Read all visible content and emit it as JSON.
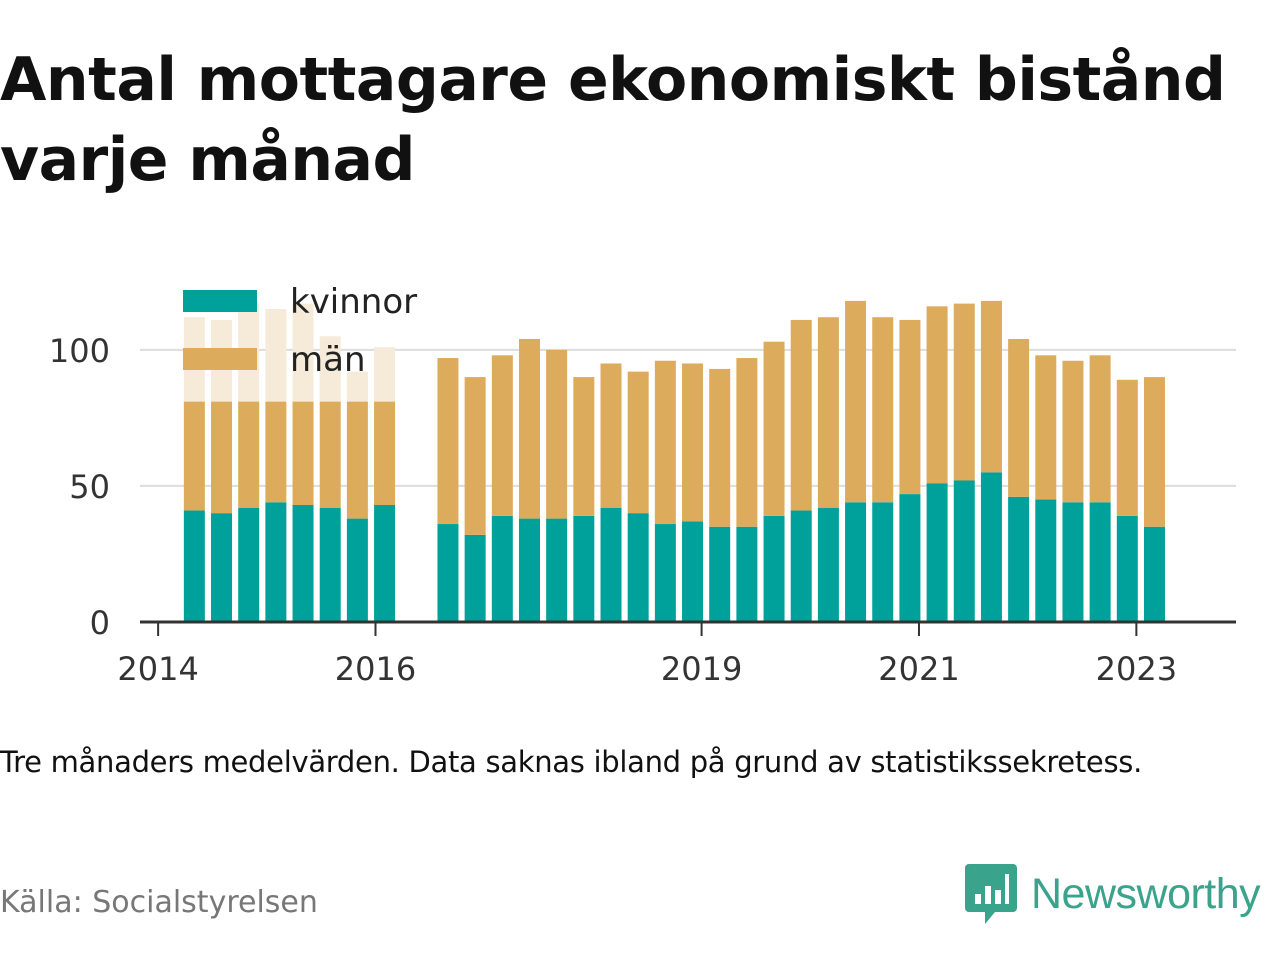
{
  "title": "Antal mottagare ekonomiskt bistånd varje månad",
  "note": "Tre månaders medelvärden. Data saknas ibland på grund av statistikssekretess.",
  "source": "Källa: Socialstyrelsen",
  "brand": {
    "name": "Newsworthy",
    "icon": "bar-chart-speech-bubble-icon",
    "color": "#3aa38c"
  },
  "colors": {
    "kvinnor": "#00a19a",
    "man": "#dcab5c",
    "man_faded": "#f6ead8",
    "grid": "#dddddd",
    "axis": "#333333"
  },
  "chart_data": {
    "type": "bar",
    "stacked": true,
    "xlim": [
      "2013-11",
      "2023-12"
    ],
    "ylim": [
      0,
      122
    ],
    "yticks": [
      0,
      50,
      100
    ],
    "xticks": [
      {
        "label": "2014",
        "date": "2014-01"
      },
      {
        "label": "2016",
        "date": "2016-01"
      },
      {
        "label": "2019",
        "date": "2019-01"
      },
      {
        "label": "2021",
        "date": "2021-01"
      },
      {
        "label": "2023",
        "date": "2023-01"
      }
    ],
    "grid": true,
    "legend": "top-left",
    "series": [
      {
        "name": "kvinnor",
        "color": "#00a19a"
      },
      {
        "name": "män",
        "color": "#dcab5c"
      }
    ],
    "bars": [
      {
        "date": "2014-05",
        "kvinnor": 41,
        "man": 40,
        "man_faded": 31
      },
      {
        "date": "2014-08",
        "kvinnor": 40,
        "man": 41,
        "man_faded": 30
      },
      {
        "date": "2014-11",
        "kvinnor": 42,
        "man": 39,
        "man_faded": 36
      },
      {
        "date": "2015-02",
        "kvinnor": 44,
        "man": 37,
        "man_faded": 34
      },
      {
        "date": "2015-05",
        "kvinnor": 43,
        "man": 38,
        "man_faded": 36
      },
      {
        "date": "2015-08",
        "kvinnor": 42,
        "man": 39,
        "man_faded": 24
      },
      {
        "date": "2015-11",
        "kvinnor": 38,
        "man": 43,
        "man_faded": 11
      },
      {
        "date": "2016-02",
        "kvinnor": 43,
        "man": 38,
        "man_faded": 20
      },
      {
        "date": "2016-09",
        "kvinnor": 36,
        "man": 61
      },
      {
        "date": "2016-12",
        "kvinnor": 32,
        "man": 58
      },
      {
        "date": "2017-03",
        "kvinnor": 39,
        "man": 59
      },
      {
        "date": "2017-06",
        "kvinnor": 38,
        "man": 66
      },
      {
        "date": "2017-09",
        "kvinnor": 38,
        "man": 62
      },
      {
        "date": "2017-12",
        "kvinnor": 39,
        "man": 51
      },
      {
        "date": "2018-03",
        "kvinnor": 42,
        "man": 53
      },
      {
        "date": "2018-06",
        "kvinnor": 40,
        "man": 52
      },
      {
        "date": "2018-09",
        "kvinnor": 36,
        "man": 60
      },
      {
        "date": "2018-12",
        "kvinnor": 37,
        "man": 58
      },
      {
        "date": "2019-03",
        "kvinnor": 35,
        "man": 58
      },
      {
        "date": "2019-06",
        "kvinnor": 35,
        "man": 62
      },
      {
        "date": "2019-09",
        "kvinnor": 39,
        "man": 64
      },
      {
        "date": "2019-12",
        "kvinnor": 41,
        "man": 70
      },
      {
        "date": "2020-03",
        "kvinnor": 42,
        "man": 70
      },
      {
        "date": "2020-06",
        "kvinnor": 44,
        "man": 74
      },
      {
        "date": "2020-09",
        "kvinnor": 44,
        "man": 68
      },
      {
        "date": "2020-12",
        "kvinnor": 47,
        "man": 64
      },
      {
        "date": "2021-03",
        "kvinnor": 51,
        "man": 65
      },
      {
        "date": "2021-06",
        "kvinnor": 52,
        "man": 65
      },
      {
        "date": "2021-09",
        "kvinnor": 55,
        "man": 63
      },
      {
        "date": "2021-12",
        "kvinnor": 46,
        "man": 58
      },
      {
        "date": "2022-03",
        "kvinnor": 45,
        "man": 53
      },
      {
        "date": "2022-06",
        "kvinnor": 44,
        "man": 52
      },
      {
        "date": "2022-09",
        "kvinnor": 44,
        "man": 54
      },
      {
        "date": "2022-12",
        "kvinnor": 39,
        "man": 50
      },
      {
        "date": "2023-03",
        "kvinnor": 35,
        "man": 55
      }
    ]
  }
}
